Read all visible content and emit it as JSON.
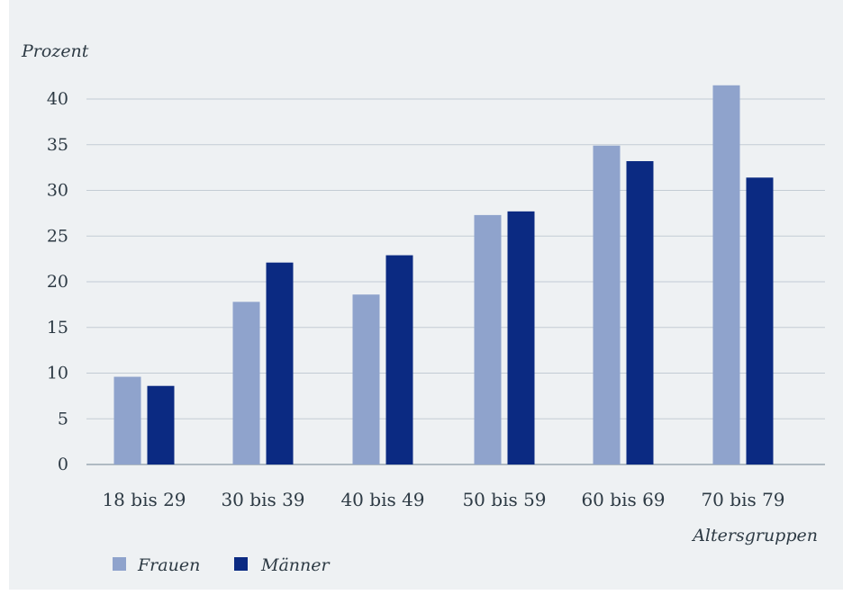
{
  "chart_data": {
    "type": "bar",
    "ylabel": "Prozent",
    "xlabel": "Altersgruppen",
    "categories": [
      "18 bis 29",
      "30 bis 39",
      "40 bis 49",
      "50 bis 59",
      "60 bis 69",
      "70 bis 79"
    ],
    "series": [
      {
        "name": "Frauen",
        "color": "#8fa3cc",
        "values": [
          9.6,
          17.8,
          18.6,
          27.3,
          34.9,
          41.5
        ]
      },
      {
        "name": "Männer",
        "color": "#0b2a82",
        "values": [
          8.6,
          22.1,
          22.9,
          27.7,
          33.2,
          31.4
        ]
      }
    ],
    "yticks": [
      0,
      5,
      10,
      15,
      20,
      25,
      30,
      35,
      40
    ],
    "ylim": [
      0,
      40
    ],
    "grid": true,
    "legend": "bottom-left"
  }
}
